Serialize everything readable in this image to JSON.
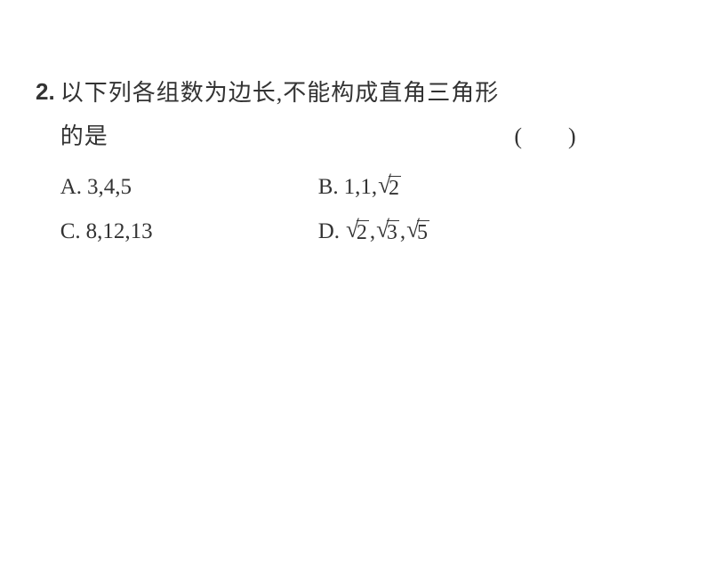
{
  "question": {
    "number": "2.",
    "text_line1": "以下列各组数为边长,不能构成直角三角形",
    "text_line2": "的是",
    "bracket_open": "(",
    "bracket_space": "        ",
    "bracket_close": ")"
  },
  "options": {
    "a": {
      "label": "A.",
      "value": "3,4,5"
    },
    "b": {
      "label": "B.",
      "prefix": "1,1,",
      "sqrt_values": [
        "2"
      ]
    },
    "c": {
      "label": "C.",
      "value": "8,12,13"
    },
    "d": {
      "label": "D.",
      "sqrt_values": [
        "2",
        "3",
        "5"
      ]
    }
  },
  "styling": {
    "background_color": "#ffffff",
    "text_color": "#333333",
    "question_fontsize": 26,
    "option_fontsize": 25,
    "sqrt_bar_color": "#333333"
  }
}
